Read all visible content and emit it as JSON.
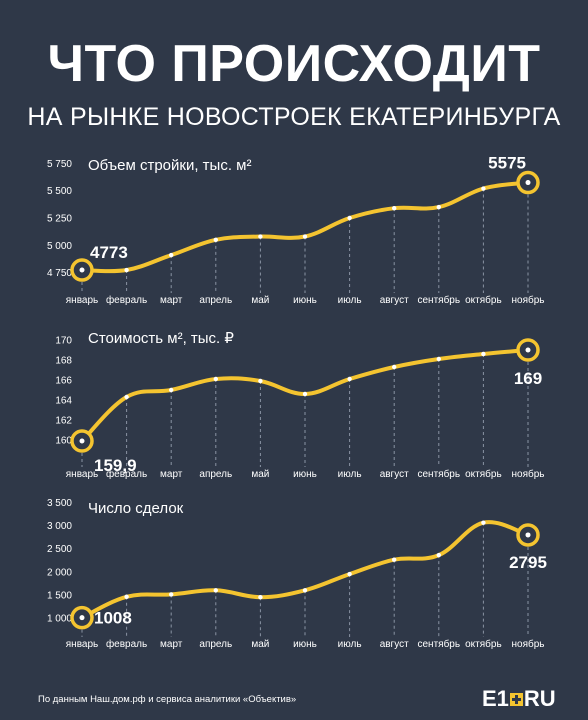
{
  "header": {
    "title": "ЧТО ПРОИСХОДИТ",
    "subtitle": "НА РЫНКЕ НОВОСТРОЕК ЕКАТЕРИНБУРГА"
  },
  "footer": {
    "source": "По данным Наш.дом.рф и сервиса аналитики «Объектив»",
    "logo_left": "E1",
    "logo_right": "RU"
  },
  "colors": {
    "background": "#2f3848",
    "line": "#f4c430",
    "text": "#ffffff",
    "grid": "#8a93a3"
  },
  "chart_data": [
    {
      "type": "line",
      "title": "Объем стройки, тыс. м²",
      "categories": [
        "январь",
        "февраль",
        "март",
        "апрель",
        "май",
        "июнь",
        "июль",
        "август",
        "сентябрь",
        "октябрь",
        "ноябрь"
      ],
      "values": [
        4773,
        4773,
        4910,
        5050,
        5080,
        5080,
        5250,
        5340,
        5350,
        5520,
        5575
      ],
      "ylim": [
        4700,
        5800
      ],
      "yticks": [
        4750,
        5000,
        5250,
        5500,
        5750
      ],
      "ytick_labels": [
        "4 750",
        "5 000",
        "5 250",
        "5 500",
        "5 750"
      ],
      "highlights": [
        {
          "index": 0,
          "label": "4773"
        },
        {
          "index": 10,
          "label": "5575"
        }
      ]
    },
    {
      "type": "line",
      "title": "Стоимость м², тыс. ₽",
      "categories": [
        "январь",
        "февраль",
        "март",
        "апрель",
        "май",
        "июнь",
        "июль",
        "август",
        "сентябрь",
        "октябрь",
        "ноябрь"
      ],
      "values": [
        159.9,
        164.3,
        165.0,
        166.1,
        165.9,
        164.6,
        166.1,
        167.3,
        168.1,
        168.6,
        169.0
      ],
      "ylim": [
        158.5,
        171
      ],
      "yticks": [
        160,
        162,
        164,
        166,
        168,
        170
      ],
      "ytick_labels": [
        "160",
        "162",
        "164",
        "166",
        "168",
        "170"
      ],
      "highlights": [
        {
          "index": 0,
          "label": "159,9"
        },
        {
          "index": 10,
          "label": "169"
        }
      ]
    },
    {
      "type": "line",
      "title": "Число сделок",
      "categories": [
        "январь",
        "февраль",
        "март",
        "апрель",
        "май",
        "июнь",
        "июль",
        "август",
        "сентябрь",
        "октябрь",
        "ноябрь"
      ],
      "values": [
        1008,
        1460,
        1510,
        1600,
        1450,
        1600,
        1950,
        2260,
        2360,
        3060,
        2795
      ],
      "ylim": [
        850,
        3550
      ],
      "yticks": [
        1000,
        1500,
        2000,
        2500,
        3000,
        3500
      ],
      "ytick_labels": [
        "1 000",
        "1 500",
        "2 000",
        "2 500",
        "3 000",
        "3 500"
      ],
      "highlights": [
        {
          "index": 0,
          "label": "1008"
        },
        {
          "index": 10,
          "label": "2795"
        }
      ]
    }
  ]
}
